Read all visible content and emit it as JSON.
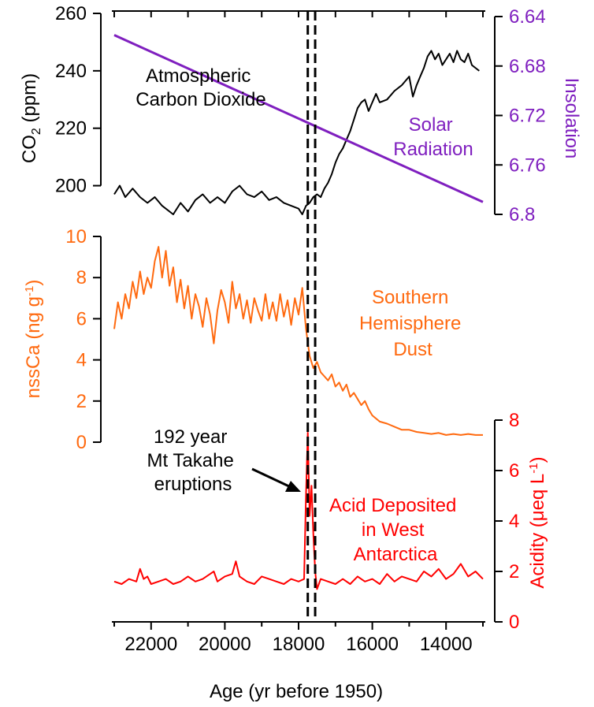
{
  "chart_data": [
    {
      "type": "line",
      "panel": "co2-insolation",
      "ylabel": "CO2 (ppm)",
      "y2label": "Insolation",
      "ylim": [
        190,
        260
      ],
      "yticks": [
        200,
        220,
        240,
        260
      ],
      "y2lim": [
        6.64,
        6.8
      ],
      "y2ticks": [
        "6.64",
        "6.68",
        "6.72",
        "6.76",
        "6.8"
      ],
      "grid": false,
      "series": [
        {
          "name": "Atmospheric Carbon Dioxide",
          "axis": "left",
          "color": "#000000",
          "x": [
            23000,
            22850,
            22700,
            22500,
            22300,
            22100,
            21900,
            21700,
            21400,
            21200,
            21000,
            20800,
            20600,
            20400,
            20200,
            20000,
            19800,
            19600,
            19400,
            19200,
            19000,
            18800,
            18600,
            18400,
            18200,
            18000,
            17900,
            17800,
            17700,
            17600,
            17500,
            17400,
            17300,
            17200,
            17100,
            17000,
            16900,
            16800,
            16700,
            16600,
            16500,
            16400,
            16300,
            16200,
            16100,
            16000,
            15900,
            15800,
            15600,
            15400,
            15200,
            15000,
            14900,
            14800,
            14700,
            14600,
            14500,
            14400,
            14300,
            14200,
            14100,
            14000,
            13900,
            13800,
            13700,
            13600,
            13500,
            13400,
            13300,
            13100
          ],
          "values": [
            197,
            200,
            196,
            199,
            196,
            194,
            196,
            193,
            190,
            194,
            191,
            195,
            197,
            194,
            196,
            194,
            198,
            200,
            197,
            196,
            198,
            195,
            196,
            194,
            193,
            192,
            190,
            193,
            194,
            196,
            197,
            196,
            199,
            201,
            204,
            208,
            211,
            213,
            216,
            219,
            223,
            227,
            229,
            230,
            226,
            229,
            232,
            229,
            230,
            233,
            235,
            238,
            231,
            235,
            238,
            241,
            245,
            247,
            244,
            246,
            242,
            244,
            246,
            243,
            247,
            244,
            243,
            246,
            242,
            240
          ]
        },
        {
          "name": "Solar Radiation",
          "axis": "right",
          "color": "#7f1fbf",
          "x": [
            23000,
            13000
          ],
          "values": [
            6.655,
            6.79
          ]
        }
      ],
      "annotations": [
        "Atmospheric Carbon Dioxide",
        "Solar Radiation"
      ]
    },
    {
      "type": "line",
      "panel": "dust",
      "ylabel": "nssCa (ng g-1)",
      "ylim": [
        0,
        10
      ],
      "yticks": [
        0,
        2,
        4,
        6,
        8,
        10
      ],
      "grid": false,
      "series": [
        {
          "name": "Southern Hemisphere Dust",
          "color": "#ff6a10",
          "x": [
            23000,
            22900,
            22800,
            22700,
            22600,
            22500,
            22400,
            22300,
            22200,
            22100,
            22000,
            21900,
            21800,
            21700,
            21600,
            21500,
            21400,
            21300,
            21200,
            21100,
            21000,
            20900,
            20800,
            20700,
            20600,
            20500,
            20400,
            20300,
            20200,
            20100,
            20000,
            19900,
            19800,
            19700,
            19600,
            19500,
            19400,
            19300,
            19200,
            19100,
            19000,
            18900,
            18800,
            18700,
            18600,
            18500,
            18400,
            18300,
            18200,
            18100,
            18000,
            17900,
            17800,
            17700,
            17600,
            17500,
            17400,
            17300,
            17200,
            17100,
            17000,
            16900,
            16800,
            16700,
            16600,
            16500,
            16400,
            16300,
            16200,
            16100,
            16000,
            15800,
            15600,
            15400,
            15200,
            15000,
            14800,
            14600,
            14400,
            14200,
            14000,
            13800,
            13600,
            13400,
            13200,
            13000
          ],
          "values": [
            5.5,
            6.8,
            6.0,
            7.2,
            6.5,
            7.8,
            7.0,
            8.3,
            7.2,
            8.0,
            7.5,
            8.8,
            9.5,
            8.0,
            9.3,
            7.6,
            8.5,
            6.8,
            7.9,
            6.5,
            7.6,
            6.0,
            7.2,
            6.6,
            5.6,
            7.0,
            6.2,
            4.8,
            6.4,
            7.4,
            6.8,
            5.8,
            7.8,
            6.5,
            7.2,
            6.0,
            6.9,
            5.8,
            7.0,
            6.4,
            5.9,
            7.2,
            6.0,
            6.8,
            5.9,
            7.2,
            6.1,
            6.9,
            5.7,
            7.0,
            6.2,
            7.5,
            5.5,
            4.2,
            3.6,
            3.9,
            3.4,
            3.2,
            3.0,
            3.3,
            2.7,
            2.9,
            2.5,
            2.8,
            2.2,
            2.4,
            2.1,
            1.8,
            2.0,
            1.6,
            1.3,
            1.0,
            0.9,
            0.75,
            0.6,
            0.6,
            0.5,
            0.45,
            0.4,
            0.45,
            0.35,
            0.4,
            0.35,
            0.4,
            0.35,
            0.35
          ]
        }
      ],
      "annotations": [
        "Southern Hemisphere Dust"
      ]
    },
    {
      "type": "line",
      "panel": "acidity",
      "ylabel": "Acidity (μeq L-1)",
      "ylim": [
        0,
        8
      ],
      "yticks": [
        0,
        2,
        4,
        6,
        8
      ],
      "xlabel": "Age (yr before 1950)",
      "xlim": [
        23000,
        13000
      ],
      "xticks": [
        22000,
        20000,
        18000,
        16000,
        14000
      ],
      "grid": false,
      "series": [
        {
          "name": "Acid Deposited in West Antarctica",
          "color": "#ff0000",
          "x": [
            23000,
            22800,
            22600,
            22400,
            22300,
            22200,
            22100,
            22000,
            21800,
            21600,
            21400,
            21200,
            21000,
            20800,
            20600,
            20400,
            20300,
            20200,
            20000,
            19800,
            19700,
            19600,
            19400,
            19200,
            19000,
            18800,
            18600,
            18400,
            18200,
            18000,
            17850,
            17800,
            17750,
            17700,
            17650,
            17600,
            17550,
            17500,
            17400,
            17200,
            17000,
            16800,
            16600,
            16400,
            16200,
            16000,
            15800,
            15600,
            15400,
            15200,
            15000,
            14800,
            14600,
            14400,
            14200,
            14000,
            13800,
            13600,
            13400,
            13200,
            13000
          ],
          "values": [
            1.6,
            1.5,
            1.7,
            1.6,
            2.1,
            1.7,
            1.8,
            1.5,
            1.6,
            1.7,
            1.5,
            1.6,
            1.8,
            1.6,
            1.7,
            1.9,
            2.0,
            1.6,
            1.8,
            1.9,
            2.4,
            1.8,
            1.6,
            1.5,
            1.8,
            1.7,
            1.6,
            1.5,
            1.7,
            1.6,
            1.7,
            5.0,
            7.5,
            4.2,
            5.4,
            3.5,
            2.0,
            1.3,
            1.7,
            1.6,
            1.5,
            1.7,
            1.5,
            1.8,
            1.6,
            1.7,
            1.5,
            1.9,
            1.6,
            1.8,
            1.7,
            1.6,
            2.0,
            1.8,
            2.1,
            1.7,
            1.9,
            2.3,
            1.8,
            2.0,
            1.7
          ]
        }
      ],
      "annotations": [
        "Acid Deposited in West Antarctica"
      ]
    }
  ],
  "labels": {
    "co2_axis_main": "CO",
    "co2_axis_sub": "2",
    "co2_axis_unit": " (ppm)",
    "insolation_axis": "Insolation",
    "dust_axis_main": "nssCa (ng g",
    "dust_axis_sup": "-1",
    "dust_axis_end": ")",
    "acid_axis_main": "Acidity (μeq L",
    "acid_axis_sup": "-1",
    "acid_axis_end": ")",
    "co2_label_line1": "Atmospheric",
    "co2_label_line2": "Carbon Dioxide",
    "solar_label_line1": "Solar",
    "solar_label_line2": "Radiation",
    "dust_label_line1": "Southern",
    "dust_label_line2": "Hemisphere",
    "dust_label_line3": "Dust",
    "acid_label_line1": "Acid Deposited",
    "acid_label_line2": "in West",
    "acid_label_line3": "Antarctica",
    "takahe_line1": "192 year",
    "takahe_line2": "Mt Takahe",
    "takahe_line3": "eruptions",
    "xaxis_label": "Age (yr before 1950)"
  },
  "eruption_markers": {
    "x": [
      17750,
      17550
    ],
    "style": "dashed"
  },
  "colors": {
    "co2": "#000000",
    "solar": "#7f1fbf",
    "dust": "#ff6a10",
    "acid": "#ff0000"
  }
}
